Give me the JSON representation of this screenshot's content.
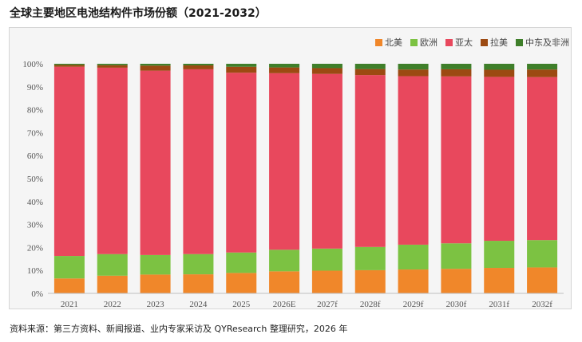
{
  "title": "全球主要地区电池结构件市场份额（2021-2032）",
  "source": "资料来源：第三方资料、新闻报道、业内专家采访及 QYResearch 整理研究，2026 年",
  "colors": {
    "北美": "#f0872a",
    "欧洲": "#7cc242",
    "亚太": "#e8485d",
    "拉美": "#9c4a12",
    "中东及非洲": "#3f7f2a"
  },
  "chart_data": {
    "type": "bar",
    "stacked": true,
    "categories": [
      "2021",
      "2022",
      "2023",
      "2024",
      "2025",
      "2026E",
      "2027f",
      "2028f",
      "2029f",
      "2030f",
      "2031f",
      "2032f"
    ],
    "series": [
      {
        "name": "北美",
        "values": [
          6.5,
          7.7,
          8.2,
          8.3,
          8.9,
          9.6,
          9.9,
          10.1,
          10.4,
          10.7,
          11.1,
          11.3
        ]
      },
      {
        "name": "欧洲",
        "values": [
          9.8,
          9.4,
          8.5,
          8.8,
          8.9,
          9.4,
          9.6,
          10.1,
          10.8,
          11.1,
          11.8,
          11.9
        ]
      },
      {
        "name": "亚太",
        "values": [
          82.4,
          81.2,
          80.3,
          80.5,
          78.3,
          76.9,
          76.1,
          74.9,
          73.4,
          72.7,
          71.4,
          71.0
        ]
      },
      {
        "name": "拉美",
        "values": [
          0.8,
          1.1,
          2.2,
          1.7,
          2.6,
          2.5,
          2.5,
          2.6,
          2.9,
          3.1,
          3.1,
          3.3
        ]
      },
      {
        "name": "中东及非洲",
        "values": [
          0.5,
          0.6,
          0.8,
          0.7,
          1.3,
          1.6,
          1.9,
          2.3,
          2.5,
          2.4,
          2.6,
          2.5
        ]
      }
    ],
    "ylim": [
      0,
      100
    ],
    "yticks": [
      "0%",
      "10%",
      "20%",
      "30%",
      "40%",
      "50%",
      "60%",
      "70%",
      "80%",
      "90%",
      "100%"
    ],
    "legend_position": "top-right",
    "grid": false
  }
}
